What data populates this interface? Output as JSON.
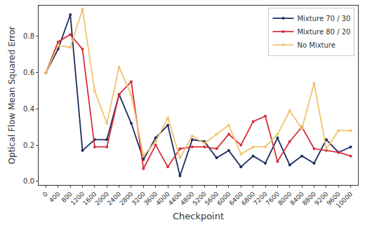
{
  "chart_data": {
    "type": "line",
    "x_label": "Checkpoint",
    "y_label": "Optical Flow Mean Squared Error",
    "categories": [
      "0",
      "400",
      "800",
      "1200",
      "1600",
      "2000",
      "2400",
      "2800",
      "3200",
      "3600",
      "4000",
      "4400",
      "4800",
      "5200",
      "5600",
      "6000",
      "6400",
      "6800",
      "7200",
      "7600",
      "8000",
      "8400",
      "8800",
      "9200",
      "9600",
      "10000"
    ],
    "series": [
      {
        "name": "Mixture 70 / 30",
        "color": "#1c2d5e",
        "marker": "circle",
        "line_style": "solid",
        "values": [
          0.6,
          0.73,
          0.92,
          0.17,
          0.23,
          0.23,
          0.48,
          0.32,
          0.12,
          0.24,
          0.31,
          0.03,
          0.23,
          0.22,
          0.13,
          0.17,
          0.08,
          0.14,
          0.1,
          0.24,
          0.09,
          0.14,
          0.1,
          0.23,
          0.16,
          0.19
        ]
      },
      {
        "name": "Mixture 80 / 20",
        "color": "#d62e3a",
        "marker": "circle",
        "line_style": "solid",
        "values": [
          0.6,
          0.77,
          0.81,
          0.73,
          0.19,
          0.19,
          0.48,
          0.55,
          0.07,
          0.2,
          0.08,
          0.18,
          0.19,
          0.19,
          0.18,
          0.26,
          0.2,
          0.33,
          0.36,
          0.11,
          0.22,
          0.3,
          0.18,
          0.17,
          0.16,
          0.14
        ]
      },
      {
        "name": "No Mixture",
        "color": "#f0c36d",
        "marker": "circle",
        "line_style": "solid",
        "values": [
          0.6,
          0.75,
          0.74,
          0.95,
          0.5,
          0.32,
          0.63,
          0.48,
          0.14,
          0.22,
          0.35,
          0.13,
          0.25,
          0.21,
          0.26,
          0.31,
          0.15,
          0.19,
          0.19,
          0.26,
          0.39,
          0.29,
          0.54,
          0.18,
          0.28,
          0.28
        ]
      }
    ],
    "ylim": [
      -0.02,
      0.97
    ],
    "yticks": [
      {
        "value": 0,
        "label": "0.0"
      },
      {
        "value": 0.2,
        "label": "0.2"
      },
      {
        "value": 0.4,
        "label": "0.4"
      },
      {
        "value": 0.6,
        "label": "0.6"
      },
      {
        "value": 0.8,
        "label": "0.8"
      }
    ],
    "grid": false,
    "legend": "top-right"
  }
}
